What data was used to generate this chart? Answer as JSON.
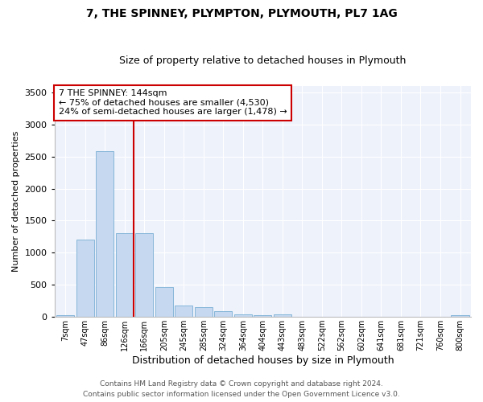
{
  "title1": "7, THE SPINNEY, PLYMPTON, PLYMOUTH, PL7 1AG",
  "title2": "Size of property relative to detached houses in Plymouth",
  "xlabel": "Distribution of detached houses by size in Plymouth",
  "ylabel": "Number of detached properties",
  "categories": [
    "7sqm",
    "47sqm",
    "86sqm",
    "126sqm",
    "166sqm",
    "205sqm",
    "245sqm",
    "285sqm",
    "324sqm",
    "364sqm",
    "404sqm",
    "443sqm",
    "483sqm",
    "522sqm",
    "562sqm",
    "602sqm",
    "641sqm",
    "681sqm",
    "721sqm",
    "760sqm",
    "800sqm"
  ],
  "values": [
    30,
    1210,
    2580,
    1310,
    1310,
    470,
    175,
    155,
    95,
    45,
    25,
    45,
    8,
    4,
    2,
    2,
    1,
    1,
    1,
    1,
    25
  ],
  "bar_color": "#c5d8f0",
  "bar_edge_color": "#7aafd4",
  "bg_color": "#eef2fb",
  "grid_color": "#ffffff",
  "annotation_text": "7 THE SPINNEY: 144sqm\n← 75% of detached houses are smaller (4,530)\n24% of semi-detached houses are larger (1,478) →",
  "annotation_box_color": "#ffffff",
  "annotation_box_edge": "#cc0000",
  "ylim": [
    0,
    3600
  ],
  "yticks": [
    0,
    500,
    1000,
    1500,
    2000,
    2500,
    3000,
    3500
  ],
  "footer1": "Contains HM Land Registry data © Crown copyright and database right 2024.",
  "footer2": "Contains public sector information licensed under the Open Government Licence v3.0."
}
